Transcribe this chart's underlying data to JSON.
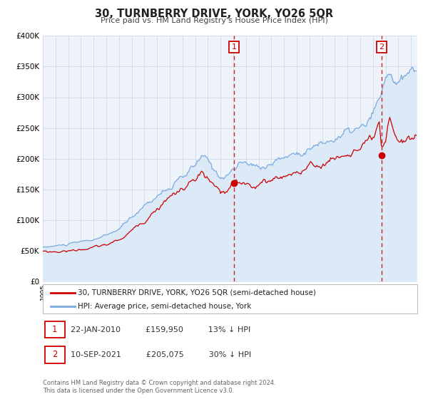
{
  "title": "30, TURNBERRY DRIVE, YORK, YO26 5QR",
  "subtitle": "Price paid vs. HM Land Registry's House Price Index (HPI)",
  "legend_line1": "30, TURNBERRY DRIVE, YORK, YO26 5QR (semi-detached house)",
  "legend_line2": "HPI: Average price, semi-detached house, York",
  "annotation1_label": "1",
  "annotation1_date": "22-JAN-2010",
  "annotation1_price": "£159,950",
  "annotation1_hpi": "13% ↓ HPI",
  "annotation2_label": "2",
  "annotation2_date": "10-SEP-2021",
  "annotation2_price": "£205,075",
  "annotation2_hpi": "30% ↓ HPI",
  "footnote1": "Contains HM Land Registry data © Crown copyright and database right 2024.",
  "footnote2": "This data is licensed under the Open Government Licence v3.0.",
  "sale1_date_num": 2010.056,
  "sale1_value": 159950,
  "sale2_date_num": 2021.69,
  "sale2_value": 205075,
  "red_line_color": "#cc0000",
  "blue_line_color": "#7aaadd",
  "blue_fill_color": "#dce9f7",
  "background_color": "#ffffff",
  "plot_bg_color": "#eef3fa",
  "grid_color": "#c8d4e8",
  "annotation_box_color": "#cc0000",
  "ylim_max": 400000,
  "ylim_min": 0,
  "xlim_min": 1995.0,
  "xlim_max": 2024.5,
  "hpi_keypoints": [
    [
      1995.0,
      55000
    ],
    [
      1996.0,
      57500
    ],
    [
      1997.0,
      60000
    ],
    [
      1998.0,
      64000
    ],
    [
      1999.0,
      68000
    ],
    [
      2000.0,
      74000
    ],
    [
      2001.0,
      85000
    ],
    [
      2002.0,
      104000
    ],
    [
      2003.0,
      124000
    ],
    [
      2004.0,
      140000
    ],
    [
      2005.0,
      152000
    ],
    [
      2006.0,
      167000
    ],
    [
      2007.0,
      188000
    ],
    [
      2007.5,
      202000
    ],
    [
      2008.0,
      196000
    ],
    [
      2008.5,
      180000
    ],
    [
      2009.0,
      172000
    ],
    [
      2009.5,
      174000
    ],
    [
      2010.0,
      182000
    ],
    [
      2010.5,
      190000
    ],
    [
      2011.0,
      192000
    ],
    [
      2011.5,
      188000
    ],
    [
      2012.0,
      186000
    ],
    [
      2012.5,
      189000
    ],
    [
      2013.0,
      193000
    ],
    [
      2014.0,
      202000
    ],
    [
      2015.0,
      210000
    ],
    [
      2016.0,
      217000
    ],
    [
      2017.0,
      224000
    ],
    [
      2018.0,
      232000
    ],
    [
      2019.0,
      242000
    ],
    [
      2020.0,
      248000
    ],
    [
      2020.5,
      252000
    ],
    [
      2021.0,
      270000
    ],
    [
      2021.5,
      292000
    ],
    [
      2022.0,
      328000
    ],
    [
      2022.3,
      342000
    ],
    [
      2022.5,
      335000
    ],
    [
      2023.0,
      322000
    ],
    [
      2023.5,
      328000
    ],
    [
      2024.0,
      338000
    ],
    [
      2024.4,
      342000
    ]
  ],
  "red_keypoints": [
    [
      1995.0,
      49000
    ],
    [
      1996.0,
      48000
    ],
    [
      1997.0,
      49500
    ],
    [
      1998.0,
      52000
    ],
    [
      1999.0,
      55000
    ],
    [
      2000.0,
      59000
    ],
    [
      2001.0,
      67000
    ],
    [
      2002.0,
      82000
    ],
    [
      2003.0,
      100000
    ],
    [
      2004.0,
      120000
    ],
    [
      2005.0,
      137000
    ],
    [
      2006.0,
      150000
    ],
    [
      2007.0,
      164000
    ],
    [
      2007.5,
      175000
    ],
    [
      2008.0,
      165000
    ],
    [
      2008.5,
      152000
    ],
    [
      2009.0,
      144000
    ],
    [
      2009.5,
      143000
    ],
    [
      2010.056,
      159950
    ],
    [
      2010.5,
      157000
    ],
    [
      2011.0,
      160000
    ],
    [
      2011.5,
      158000
    ],
    [
      2012.0,
      158000
    ],
    [
      2012.5,
      161000
    ],
    [
      2013.0,
      166000
    ],
    [
      2014.0,
      173000
    ],
    [
      2015.0,
      179000
    ],
    [
      2016.0,
      185000
    ],
    [
      2017.0,
      192000
    ],
    [
      2018.0,
      200000
    ],
    [
      2019.0,
      208000
    ],
    [
      2020.0,
      215000
    ],
    [
      2020.5,
      218000
    ],
    [
      2021.0,
      228000
    ],
    [
      2021.5,
      248000
    ],
    [
      2021.69,
      205075
    ],
    [
      2022.0,
      218000
    ],
    [
      2022.3,
      258000
    ],
    [
      2022.5,
      248000
    ],
    [
      2023.0,
      232000
    ],
    [
      2023.5,
      228000
    ],
    [
      2024.0,
      232000
    ],
    [
      2024.4,
      234000
    ]
  ]
}
